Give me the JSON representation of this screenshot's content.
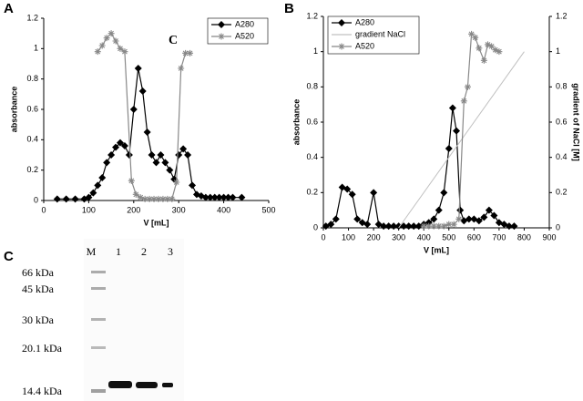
{
  "chart_data": [
    {
      "type": "line",
      "panel_label": "A",
      "annotation": "C",
      "xlabel": "V [mL]",
      "ylabel": "absorbance",
      "xlim": [
        0,
        500
      ],
      "xticks": [
        0,
        100,
        200,
        300,
        400,
        500
      ],
      "ylim": [
        0,
        1.2
      ],
      "yticks": [
        0,
        0.2,
        0.4,
        0.6,
        0.8,
        1,
        1.2
      ],
      "series": [
        {
          "name": "A280",
          "color": "#000000",
          "marker": "diamond",
          "x": [
            30,
            50,
            70,
            90,
            100,
            110,
            120,
            130,
            140,
            150,
            160,
            170,
            180,
            190,
            200,
            210,
            220,
            230,
            240,
            250,
            260,
            270,
            280,
            290,
            300,
            310,
            320,
            330,
            340,
            350,
            360,
            370,
            380,
            390,
            400,
            410,
            420,
            440
          ],
          "values": [
            0.01,
            0.01,
            0.01,
            0.01,
            0.02,
            0.05,
            0.1,
            0.15,
            0.25,
            0.3,
            0.35,
            0.38,
            0.36,
            0.3,
            0.6,
            0.87,
            0.72,
            0.45,
            0.3,
            0.25,
            0.3,
            0.25,
            0.2,
            0.14,
            0.3,
            0.34,
            0.3,
            0.1,
            0.04,
            0.03,
            0.02,
            0.02,
            0.02,
            0.02,
            0.02,
            0.02,
            0.02,
            0.02
          ]
        },
        {
          "name": "A520",
          "color": "#888888",
          "marker": "star",
          "x": [
            120,
            130,
            140,
            150,
            160,
            170,
            180,
            195,
            205,
            215,
            225,
            235,
            245,
            255,
            265,
            275,
            285,
            295,
            305,
            315,
            325
          ],
          "values": [
            0.98,
            1.02,
            1.07,
            1.1,
            1.05,
            1.0,
            0.98,
            0.13,
            0.04,
            0.02,
            0.01,
            0.01,
            0.01,
            0.01,
            0.01,
            0.01,
            0.01,
            0.12,
            0.87,
            0.97,
            0.97
          ]
        }
      ]
    },
    {
      "type": "line",
      "panel_label": "B",
      "xlabel": "V [mL]",
      "ylabel": "absorbance",
      "y2label": "gradient of NaCl [M]",
      "xlim": [
        0,
        900
      ],
      "xticks": [
        0,
        100,
        200,
        300,
        400,
        500,
        600,
        700,
        800,
        900
      ],
      "ylim": [
        0,
        1.2
      ],
      "yticks": [
        0,
        0.2,
        0.4,
        0.6,
        0.8,
        1,
        1.2
      ],
      "y2lim": [
        0,
        1.2
      ],
      "y2ticks": [
        0,
        0.2,
        0.4,
        0.6,
        0.8,
        1,
        1.2
      ],
      "series": [
        {
          "name": "A280",
          "color": "#000000",
          "marker": "diamond",
          "x": [
            10,
            30,
            50,
            75,
            95,
            115,
            135,
            155,
            175,
            200,
            220,
            240,
            260,
            280,
            300,
            320,
            340,
            360,
            380,
            400,
            420,
            440,
            460,
            480,
            500,
            515,
            530,
            545,
            560,
            580,
            600,
            620,
            640,
            660,
            680,
            700,
            720,
            740,
            760
          ],
          "values": [
            0.01,
            0.02,
            0.05,
            0.23,
            0.22,
            0.19,
            0.05,
            0.03,
            0.02,
            0.2,
            0.02,
            0.01,
            0.01,
            0.01,
            0.01,
            0.01,
            0.01,
            0.01,
            0.01,
            0.02,
            0.03,
            0.05,
            0.1,
            0.2,
            0.45,
            0.68,
            0.55,
            0.1,
            0.04,
            0.05,
            0.05,
            0.04,
            0.06,
            0.1,
            0.07,
            0.03,
            0.02,
            0.01,
            0.01
          ]
        },
        {
          "name": "gradient NaCl",
          "color": "#c0c0c0",
          "axis": "y2",
          "x": [
            300,
            800
          ],
          "values": [
            0,
            1
          ]
        },
        {
          "name": "A520",
          "color": "#888888",
          "marker": "star",
          "x": [
            400,
            420,
            440,
            460,
            480,
            500,
            520,
            540,
            560,
            575,
            590,
            605,
            620,
            640,
            655,
            670,
            685,
            700
          ],
          "values": [
            0.01,
            0.01,
            0.01,
            0.01,
            0.01,
            0.02,
            0.02,
            0.05,
            0.72,
            0.8,
            1.1,
            1.08,
            1.02,
            0.95,
            1.04,
            1.03,
            1.01,
            1.0
          ]
        }
      ]
    }
  ],
  "gel": {
    "panel_label": "C",
    "lanes": [
      "M",
      "1",
      "2",
      "3"
    ],
    "markers": [
      "66 kDa",
      "45 kDa",
      "30 kDa",
      "20.1 kDa",
      "14.4 kDa"
    ]
  }
}
